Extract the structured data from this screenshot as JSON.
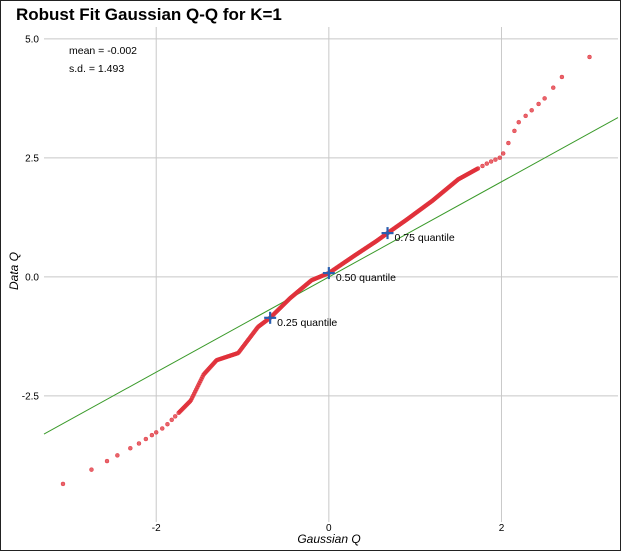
{
  "chart_data": {
    "type": "scatter",
    "title": "Robust Fit Gaussian Q-Q for K=1",
    "xlabel": "Gaussian Q",
    "ylabel": "Data Q",
    "xlim": [
      -3.3,
      3.35
    ],
    "ylim": [
      -5.15,
      5.25
    ],
    "x_ticks": [
      -2,
      0,
      2
    ],
    "x_tick_labels": [
      "-2",
      "0",
      "2"
    ],
    "y_ticks": [
      5.0,
      2.5,
      0.0,
      -2.5
    ],
    "y_tick_labels": [
      "5.0",
      "2.5",
      "0.0",
      "-2.5"
    ],
    "grid": true,
    "stats": {
      "mean": "mean = -0.002",
      "sd": "s.d. = 1.493"
    },
    "fit_line": {
      "color": "#3a9a2a",
      "intercept": -0.002,
      "slope": 1.0
    },
    "point_color": "#e0303a",
    "curve": [
      [
        -3.08,
        -4.35
      ],
      [
        -2.75,
        -4.05
      ],
      [
        -2.5,
        -3.8
      ],
      [
        -2.2,
        -3.5
      ],
      [
        -1.9,
        -3.15
      ],
      [
        -1.6,
        -2.6
      ],
      [
        -1.45,
        -2.05
      ],
      [
        -1.3,
        -1.75
      ],
      [
        -1.05,
        -1.6
      ],
      [
        -0.82,
        -1.05
      ],
      [
        -0.68,
        -0.86
      ],
      [
        -0.45,
        -0.45
      ],
      [
        -0.2,
        -0.07
      ],
      [
        0.0,
        0.08
      ],
      [
        0.3,
        0.45
      ],
      [
        0.55,
        0.75
      ],
      [
        0.68,
        0.92
      ],
      [
        0.9,
        1.2
      ],
      [
        1.2,
        1.6
      ],
      [
        1.5,
        2.05
      ],
      [
        1.85,
        2.4
      ],
      [
        2.0,
        2.52
      ],
      [
        2.2,
        3.25
      ],
      [
        2.5,
        3.75
      ],
      [
        2.7,
        4.2
      ],
      [
        3.02,
        4.62
      ]
    ],
    "quantiles": [
      {
        "label": "0.25 quantile",
        "x": -0.68,
        "y": -0.86
      },
      {
        "label": "0.50 quantile",
        "x": 0.0,
        "y": 0.08
      },
      {
        "label": "0.75 quantile",
        "x": 0.68,
        "y": 0.92
      }
    ],
    "quantile_marker_color": "#2a5fb0"
  }
}
